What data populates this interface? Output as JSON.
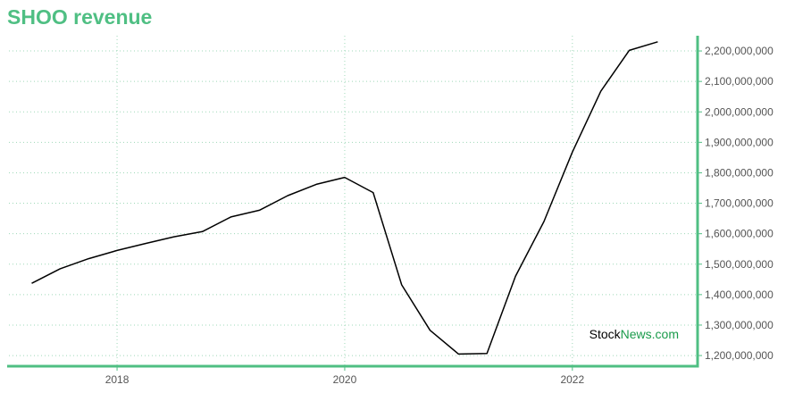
{
  "chart_data": {
    "type": "line",
    "title": "SHOO revenue",
    "xlabel": "",
    "ylabel": "",
    "x_ticks": [
      "2018",
      "2020",
      "2022"
    ],
    "y_ticks": [
      "1,200,000,000",
      "1,300,000,000",
      "1,400,000,000",
      "1,500,000,000",
      "1,600,000,000",
      "1,700,000,000",
      "1,800,000,000",
      "1,900,000,000",
      "2,000,000,000",
      "2,100,000,000",
      "2,200,000,000"
    ],
    "y_tick_values": [
      1200000000,
      1300000000,
      1400000000,
      1500000000,
      1600000000,
      1700000000,
      1800000000,
      1900000000,
      2000000000,
      2100000000,
      2200000000
    ],
    "xlim": [
      2017.05,
      2023.1
    ],
    "ylim": [
      1165000000,
      2250000000
    ],
    "grid": true,
    "series": [
      {
        "x": [
          2017.25,
          2017.5,
          2017.75,
          2018.0,
          2018.25,
          2018.5,
          2018.75,
          2019.0,
          2019.25,
          2019.5,
          2019.75,
          2020.0,
          2020.25,
          2020.5,
          2020.75,
          2021.0,
          2021.25,
          2021.5,
          2021.75,
          2022.0,
          2022.25,
          2022.5,
          2022.75
        ],
        "y": [
          1437000000,
          1485000000,
          1518000000,
          1545000000,
          1568000000,
          1590000000,
          1607000000,
          1655000000,
          1677000000,
          1725000000,
          1762000000,
          1785000000,
          1735000000,
          1432000000,
          1283000000,
          1205000000,
          1207000000,
          1460000000,
          1640000000,
          1868000000,
          2068000000,
          2202000000,
          2230000000
        ]
      }
    ]
  },
  "watermark": {
    "part1": "Stock",
    "part2": "News",
    "part3": ".com"
  },
  "colors": {
    "accent": "#4fbf83",
    "line": "#000000",
    "grid": "#9fd8b8",
    "watermark_green": "#1a9b4b"
  }
}
